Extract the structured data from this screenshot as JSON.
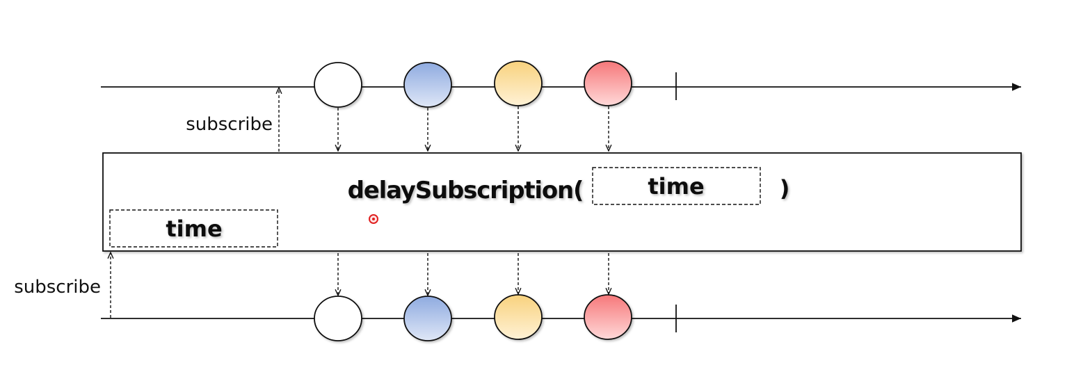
{
  "operator": {
    "name": "delaySubscription(",
    "param_label": "time",
    "close_paren": ")"
  },
  "delay_box_label": "time",
  "upstream": {
    "subscribe_label": "subscribe"
  },
  "downstream": {
    "subscribe_label": "subscribe"
  },
  "marbles": [
    {
      "name": "marble-white",
      "fill_top": "#ffffff",
      "fill_bottom": "#ffffff"
    },
    {
      "name": "marble-blue",
      "fill_top": "#8fabe0",
      "fill_bottom": "#dfe7f7"
    },
    {
      "name": "marble-yellow",
      "fill_top": "#f8d27e",
      "fill_bottom": "#fff2d6"
    },
    {
      "name": "marble-red",
      "fill_top": "#f6787a",
      "fill_bottom": "#ffd9d9"
    }
  ],
  "colors": {
    "line": "#111111",
    "cursor": "#e02020"
  }
}
